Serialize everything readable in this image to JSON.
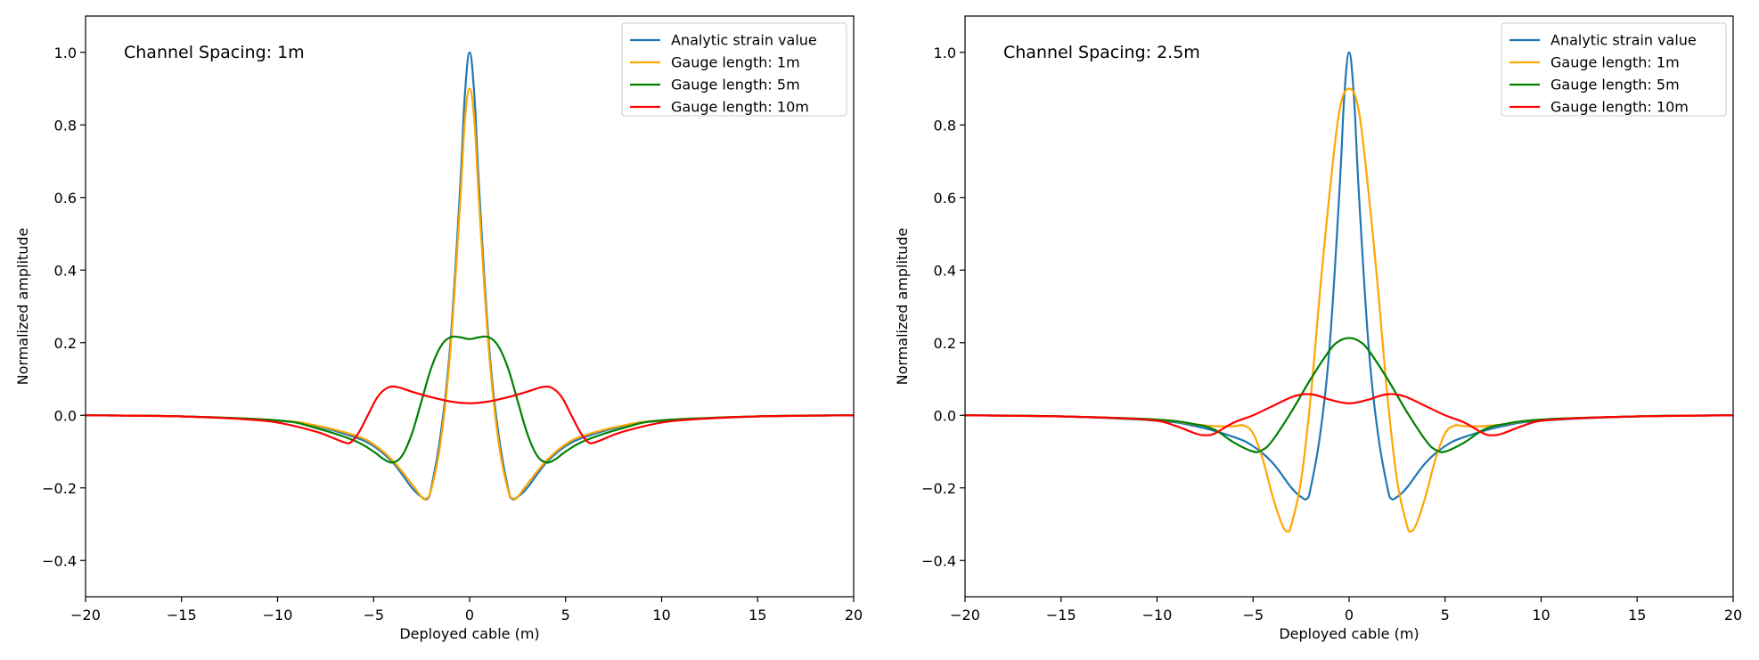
{
  "chart_data": [
    {
      "type": "line",
      "annotation": "Channel Spacing: 1m",
      "xlabel": "Deployed cable (m)",
      "ylabel": "Normalized amplitude",
      "xlim": [
        -20,
        20
      ],
      "ylim": [
        -0.5,
        1.1
      ],
      "xticks": [
        -20,
        -15,
        -10,
        -5,
        0,
        5,
        10,
        15,
        20
      ],
      "yticks": [
        -0.4,
        -0.2,
        0.0,
        0.2,
        0.4,
        0.6,
        0.8,
        1.0
      ],
      "xtick_labels": [
        "−20",
        "−15",
        "−10",
        "−5",
        "0",
        "5",
        "10",
        "15",
        "20"
      ],
      "ytick_labels": [
        "−0.4",
        "−0.2",
        "0.0",
        "0.2",
        "0.4",
        "0.6",
        "0.8",
        "1.0"
      ],
      "grid": false,
      "legend_position": "top-right",
      "series": [
        {
          "name": "Analytic strain value",
          "color": "#1f77b4",
          "x": [
            -20,
            -15,
            -10,
            -8,
            -6,
            -5,
            -4,
            -3,
            -2.5,
            -2.2,
            -2,
            -1.5,
            -1,
            -0.5,
            -0.25,
            0,
            0.25,
            0.5,
            1,
            1.5,
            2,
            2.2,
            2.5,
            3,
            4,
            5,
            6,
            8,
            10,
            15,
            20
          ],
          "y": [
            0,
            -0.003,
            -0.015,
            -0.03,
            -0.06,
            -0.085,
            -0.13,
            -0.2,
            -0.225,
            -0.23,
            -0.2,
            -0.05,
            0.2,
            0.62,
            0.88,
            1.0,
            0.88,
            0.62,
            0.2,
            -0.05,
            -0.2,
            -0.23,
            -0.225,
            -0.2,
            -0.13,
            -0.085,
            -0.06,
            -0.03,
            -0.015,
            -0.003,
            0
          ]
        },
        {
          "name": "Gauge length: 1m",
          "color": "#ffa500",
          "x": [
            -20,
            -15,
            -10,
            -8,
            -6,
            -5,
            -4,
            -3,
            -2.5,
            -2.3,
            -2,
            -1.5,
            -1,
            -0.5,
            -0.25,
            0,
            0.25,
            0.5,
            1,
            1.5,
            2,
            2.3,
            2.5,
            3,
            4,
            5,
            6,
            8,
            10,
            15,
            20
          ],
          "y": [
            0,
            -0.003,
            -0.014,
            -0.028,
            -0.055,
            -0.08,
            -0.125,
            -0.19,
            -0.225,
            -0.23,
            -0.205,
            -0.07,
            0.18,
            0.58,
            0.81,
            0.9,
            0.81,
            0.58,
            0.18,
            -0.07,
            -0.205,
            -0.23,
            -0.225,
            -0.19,
            -0.125,
            -0.08,
            -0.055,
            -0.028,
            -0.014,
            -0.003,
            0
          ]
        },
        {
          "name": "Gauge length: 5m",
          "color": "#008000",
          "x": [
            -20,
            -15,
            -10,
            -8,
            -6,
            -5,
            -4.5,
            -4,
            -3.5,
            -3,
            -2.5,
            -2,
            -1.5,
            -1,
            -0.5,
            0,
            0.5,
            1,
            1.5,
            2,
            2.5,
            3,
            3.5,
            4,
            4.5,
            5,
            6,
            8,
            10,
            15,
            20
          ],
          "y": [
            0,
            -0.003,
            -0.014,
            -0.035,
            -0.07,
            -0.1,
            -0.12,
            -0.13,
            -0.11,
            -0.05,
            0.04,
            0.13,
            0.19,
            0.215,
            0.215,
            0.21,
            0.215,
            0.215,
            0.19,
            0.13,
            0.04,
            -0.05,
            -0.11,
            -0.13,
            -0.12,
            -0.1,
            -0.07,
            -0.035,
            -0.014,
            -0.003,
            0
          ]
        },
        {
          "name": "Gauge length: 10m",
          "color": "#ff0000",
          "x": [
            -20,
            -15,
            -12,
            -10,
            -8,
            -7,
            -6.5,
            -6.2,
            -5.8,
            -5.3,
            -4.8,
            -4.3,
            -3.8,
            -3,
            -2,
            -1,
            0,
            1,
            2,
            3,
            3.8,
            4.3,
            4.8,
            5.3,
            5.8,
            6.2,
            6.5,
            7,
            8,
            10,
            12,
            15,
            20
          ],
          "y": [
            0,
            -0.003,
            -0.01,
            -0.02,
            -0.045,
            -0.065,
            -0.075,
            -0.075,
            -0.05,
            0.0,
            0.05,
            0.075,
            0.078,
            0.065,
            0.05,
            0.038,
            0.033,
            0.038,
            0.05,
            0.065,
            0.078,
            0.075,
            0.05,
            0.0,
            -0.05,
            -0.075,
            -0.075,
            -0.065,
            -0.045,
            -0.02,
            -0.01,
            -0.003,
            0
          ]
        }
      ]
    },
    {
      "type": "line",
      "annotation": "Channel Spacing: 2.5m",
      "xlabel": "Deployed cable (m)",
      "ylabel": "Normalized amplitude",
      "xlim": [
        -20,
        20
      ],
      "ylim": [
        -0.5,
        1.1
      ],
      "xticks": [
        -20,
        -15,
        -10,
        -5,
        0,
        5,
        10,
        15,
        20
      ],
      "yticks": [
        -0.4,
        -0.2,
        0.0,
        0.2,
        0.4,
        0.6,
        0.8,
        1.0
      ],
      "xtick_labels": [
        "−20",
        "−15",
        "−10",
        "−5",
        "0",
        "5",
        "10",
        "15",
        "20"
      ],
      "ytick_labels": [
        "−0.4",
        "−0.2",
        "0.0",
        "0.2",
        "0.4",
        "0.6",
        "0.8",
        "1.0"
      ],
      "grid": false,
      "legend_position": "top-right",
      "series": [
        {
          "name": "Analytic strain value",
          "color": "#1f77b4",
          "x": [
            -20,
            -15,
            -10,
            -8,
            -6,
            -5,
            -4,
            -3,
            -2.5,
            -2.2,
            -2,
            -1.5,
            -1,
            -0.5,
            -0.25,
            0,
            0.25,
            0.5,
            1,
            1.5,
            2,
            2.2,
            2.5,
            3,
            4,
            5,
            6,
            8,
            10,
            15,
            20
          ],
          "y": [
            0,
            -0.003,
            -0.015,
            -0.03,
            -0.06,
            -0.085,
            -0.13,
            -0.2,
            -0.225,
            -0.23,
            -0.2,
            -0.05,
            0.2,
            0.62,
            0.88,
            1.0,
            0.88,
            0.62,
            0.2,
            -0.05,
            -0.2,
            -0.23,
            -0.225,
            -0.2,
            -0.13,
            -0.085,
            -0.06,
            -0.03,
            -0.015,
            -0.003,
            0
          ]
        },
        {
          "name": "Gauge length: 1m",
          "color": "#ffa500",
          "x": [
            -20,
            -15,
            -10,
            -8,
            -7,
            -6,
            -5.5,
            -5,
            -4.5,
            -4,
            -3.5,
            -3.2,
            -3,
            -2.5,
            -2,
            -1.5,
            -1,
            -0.5,
            0,
            0.5,
            1,
            1.5,
            2,
            2.5,
            3,
            3.2,
            3.5,
            4,
            4.5,
            5,
            5.5,
            6,
            7,
            8,
            10,
            15,
            20
          ],
          "y": [
            0,
            -0.003,
            -0.012,
            -0.025,
            -0.03,
            -0.03,
            -0.028,
            -0.05,
            -0.12,
            -0.22,
            -0.3,
            -0.32,
            -0.3,
            -0.18,
            0.05,
            0.35,
            0.62,
            0.84,
            0.9,
            0.84,
            0.62,
            0.35,
            0.05,
            -0.18,
            -0.3,
            -0.32,
            -0.3,
            -0.22,
            -0.12,
            -0.05,
            -0.028,
            -0.03,
            -0.03,
            -0.025,
            -0.012,
            -0.003,
            0
          ]
        },
        {
          "name": "Gauge length: 5m",
          "color": "#008000",
          "x": [
            -20,
            -15,
            -10,
            -8,
            -7,
            -6,
            -5,
            -4.5,
            -4,
            -3,
            -2,
            -1,
            -0.5,
            0,
            0.5,
            1,
            2,
            3,
            4,
            4.5,
            5,
            6,
            7,
            8,
            10,
            15,
            20
          ],
          "y": [
            0,
            -0.003,
            -0.012,
            -0.025,
            -0.04,
            -0.075,
            -0.1,
            -0.095,
            -0.07,
            0.01,
            0.1,
            0.18,
            0.205,
            0.213,
            0.205,
            0.18,
            0.1,
            0.01,
            -0.07,
            -0.095,
            -0.1,
            -0.075,
            -0.04,
            -0.025,
            -0.012,
            -0.003,
            0
          ]
        },
        {
          "name": "Gauge length: 10m",
          "color": "#ff0000",
          "x": [
            -20,
            -15,
            -12,
            -10,
            -9,
            -8,
            -7.5,
            -7,
            -6,
            -5,
            -4,
            -3,
            -2.5,
            -2,
            -1.5,
            -1,
            0,
            1,
            1.5,
            2,
            2.5,
            3,
            4,
            5,
            6,
            7,
            7.5,
            8,
            9,
            10,
            12,
            15,
            20
          ],
          "y": [
            0,
            -0.003,
            -0.008,
            -0.015,
            -0.03,
            -0.05,
            -0.055,
            -0.05,
            -0.02,
            0.0,
            0.025,
            0.05,
            0.057,
            0.058,
            0.052,
            0.043,
            0.033,
            0.043,
            0.052,
            0.058,
            0.057,
            0.05,
            0.025,
            0.0,
            -0.02,
            -0.05,
            -0.055,
            -0.05,
            -0.03,
            -0.015,
            -0.008,
            -0.003,
            0
          ]
        }
      ]
    }
  ]
}
